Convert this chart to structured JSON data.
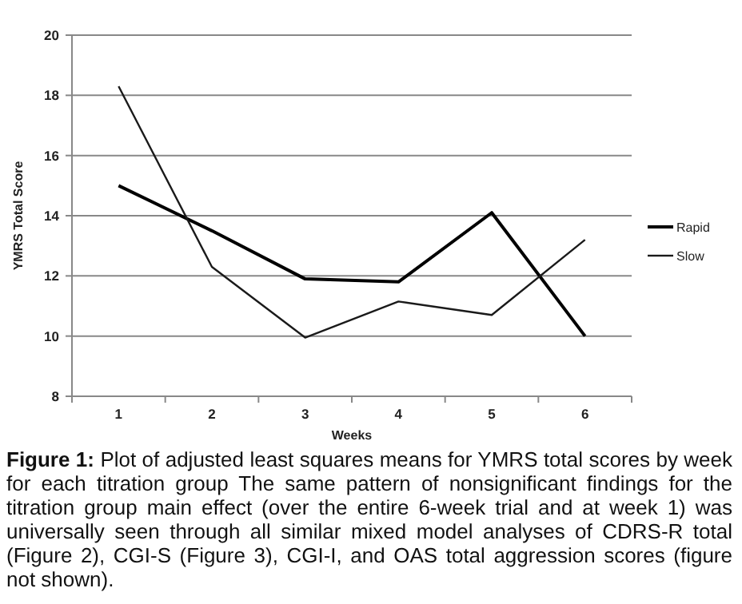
{
  "chart_data": {
    "type": "line",
    "xlabel": "Weeks",
    "ylabel": "YMRS Total Score",
    "categories": [
      "1",
      "2",
      "3",
      "4",
      "5",
      "6"
    ],
    "series": [
      {
        "name": "Rapid",
        "color": "#000000",
        "values": [
          15,
          13.5,
          11.9,
          11.8,
          14.1,
          10
        ]
      },
      {
        "name": "Slow",
        "color": "#1a1a1a",
        "values": [
          18.3,
          12.3,
          9.95,
          11.15,
          10.7,
          13.2
        ]
      }
    ],
    "ylim": [
      8,
      20
    ],
    "yticks": [
      8,
      10,
      12,
      14,
      16,
      18,
      20
    ],
    "grid": "y",
    "legend": "right",
    "marker": "none",
    "line_style": "solid",
    "annotations": [
      "Figure 1: Plot of adjusted least squares means for YMRS total scores by week for each titration group The same pattern of nonsignificant findings for the titration group main effect (over the entire 6-week trial and at week 1) was universally seen through all similar mixed model analyses of CDRS-R total (Figure 2), CGI-S (Figure 3), CGI-I, and OAS total aggression scores (figure not shown)."
    ]
  }
}
